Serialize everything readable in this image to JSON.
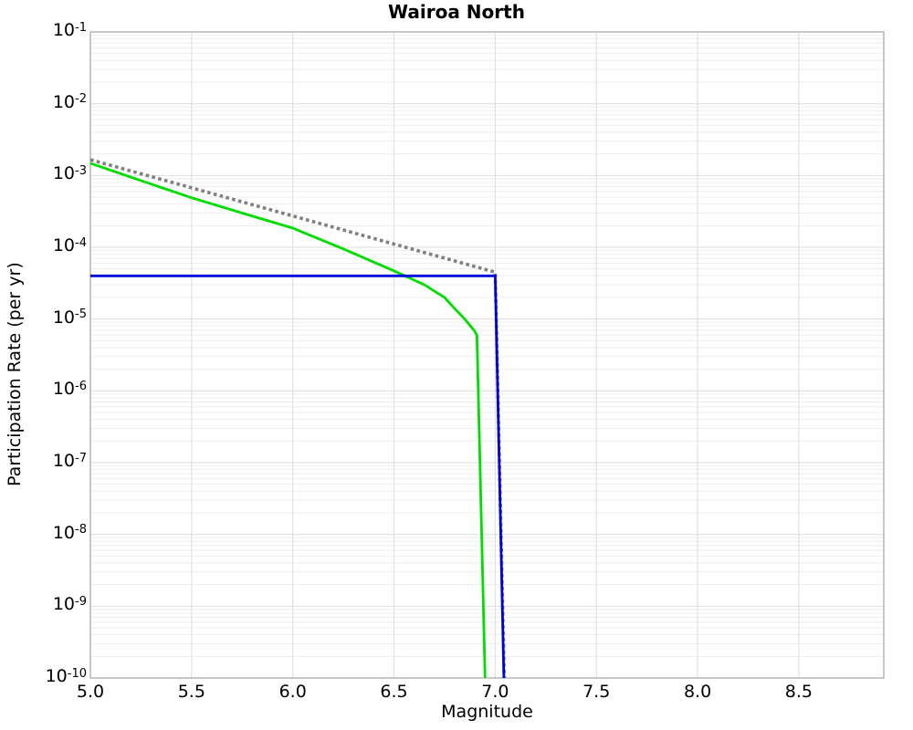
{
  "title": "Wairoa North",
  "chart_data": {
    "type": "line",
    "title": "Wairoa North",
    "xlabel": "Magnitude",
    "ylabel": "Participation Rate (per yr)",
    "x_scale": "linear",
    "y_scale": "log",
    "xlim": [
      5.0,
      8.92
    ],
    "ylim": [
      1e-10,
      0.1
    ],
    "grid": {
      "shown": true,
      "vertical_at": [
        5.5,
        6.0,
        6.5,
        7.0,
        7.5,
        8.0,
        8.5
      ],
      "minor_horizontal": true,
      "major_color": "#dddddd",
      "minor_color": "#eeeeee"
    },
    "frame_color": "#aaaaaa",
    "background": "#ffffff",
    "legend": "none",
    "x_ticks": [
      {
        "value": 5.0,
        "label": "5.0"
      },
      {
        "value": 5.5,
        "label": "5.5"
      },
      {
        "value": 6.0,
        "label": "6.0"
      },
      {
        "value": 6.5,
        "label": "6.5"
      },
      {
        "value": 7.0,
        "label": "7.0"
      },
      {
        "value": 7.5,
        "label": "7.5"
      },
      {
        "value": 8.0,
        "label": "8.0"
      },
      {
        "value": 8.5,
        "label": "8.5"
      }
    ],
    "y_ticks": [
      {
        "exponent": -1,
        "base": "10",
        "sup": "-1"
      },
      {
        "exponent": -2,
        "base": "10",
        "sup": "-2"
      },
      {
        "exponent": -3,
        "base": "10",
        "sup": "-3"
      },
      {
        "exponent": -4,
        "base": "10",
        "sup": "-4"
      },
      {
        "exponent": -5,
        "base": "10",
        "sup": "-5"
      },
      {
        "exponent": -6,
        "base": "10",
        "sup": "-6"
      },
      {
        "exponent": -7,
        "base": "10",
        "sup": "-7"
      },
      {
        "exponent": -8,
        "base": "10",
        "sup": "-8"
      },
      {
        "exponent": -9,
        "base": "10",
        "sup": "-9"
      },
      {
        "exponent": -10,
        "base": "10",
        "sup": "-10"
      }
    ],
    "series": [
      {
        "name": "gray-dotted-line",
        "color": "#808080",
        "line_style": "dotted",
        "line_width": 3.6,
        "points": [
          [
            5.0,
            0.00166
          ],
          [
            7.0,
            4.5e-05
          ],
          [
            7.045,
            1e-10
          ]
        ]
      },
      {
        "name": "green-solid-line",
        "color": "#00dd00",
        "line_style": "solid",
        "line_width": 2.8,
        "points": [
          [
            5.0,
            0.00148
          ],
          [
            5.25,
            0.00085
          ],
          [
            5.5,
            0.00049
          ],
          [
            5.75,
            0.0003
          ],
          [
            6.0,
            0.000185
          ],
          [
            6.25,
            9.5e-05
          ],
          [
            6.5,
            4.7e-05
          ],
          [
            6.65,
            3e-05
          ],
          [
            6.75,
            2e-05
          ],
          [
            6.8,
            1.4e-05
          ],
          [
            6.85,
            1e-05
          ],
          [
            6.9,
            6.7e-06
          ],
          [
            6.91,
            5.9e-06
          ],
          [
            6.95,
            1e-10
          ]
        ]
      },
      {
        "name": "blue-solid-line",
        "color": "#0000dd",
        "line_style": "solid",
        "line_width": 2.8,
        "points": [
          [
            5.0,
            4e-05
          ],
          [
            7.0,
            4e-05
          ],
          [
            7.043,
            1e-10
          ]
        ]
      }
    ]
  }
}
